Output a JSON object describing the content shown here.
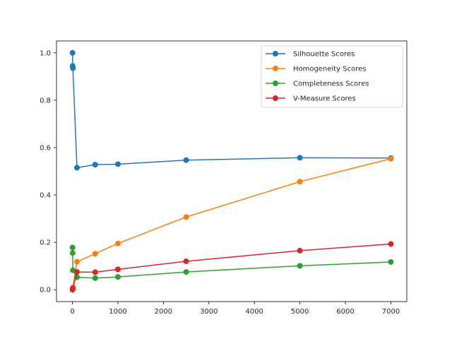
{
  "chart_data": {
    "type": "line",
    "title": "",
    "xlabel": "",
    "ylabel": "",
    "xlim": [
      -350,
      7350
    ],
    "ylim": [
      -0.05,
      1.05
    ],
    "xticks": [
      0,
      1000,
      2000,
      3000,
      4000,
      5000,
      6000,
      7000
    ],
    "yticks": [
      0.0,
      0.2,
      0.4,
      0.6,
      0.8,
      1.0
    ],
    "xtick_labels": [
      "0",
      "1000",
      "2000",
      "3000",
      "4000",
      "5000",
      "6000",
      "7000"
    ],
    "ytick_labels": [
      "0.0",
      "0.2",
      "0.4",
      "0.6",
      "0.8",
      "1.0"
    ],
    "grid": false,
    "legend_position": "top-right",
    "series": [
      {
        "name": "Silhouette Scores",
        "color": "#1f77b4",
        "x": [
          2,
          5,
          10,
          100,
          500,
          1000,
          2500,
          5000,
          7000
        ],
        "y": [
          1.0,
          0.945,
          0.935,
          0.515,
          0.528,
          0.53,
          0.547,
          0.557,
          0.556
        ]
      },
      {
        "name": "Homogeneity Scores",
        "color": "#ff7f0e",
        "x": [
          2,
          5,
          10,
          100,
          500,
          1000,
          2500,
          5000,
          7000
        ],
        "y": [
          0.0,
          0.005,
          0.01,
          0.118,
          0.152,
          0.195,
          0.307,
          0.456,
          0.553
        ]
      },
      {
        "name": "Completeness Scores",
        "color": "#2ca02c",
        "x": [
          2,
          5,
          10,
          100,
          500,
          1000,
          2500,
          5000,
          7000
        ],
        "y": [
          0.178,
          0.155,
          0.082,
          0.053,
          0.049,
          0.054,
          0.075,
          0.101,
          0.117
        ]
      },
      {
        "name": "V-Measure Scores",
        "color": "#d62728",
        "x": [
          2,
          5,
          10,
          100,
          500,
          1000,
          2500,
          5000,
          7000
        ],
        "y": [
          0.0,
          0.003,
          0.005,
          0.075,
          0.074,
          0.086,
          0.12,
          0.165,
          0.193
        ]
      }
    ]
  }
}
